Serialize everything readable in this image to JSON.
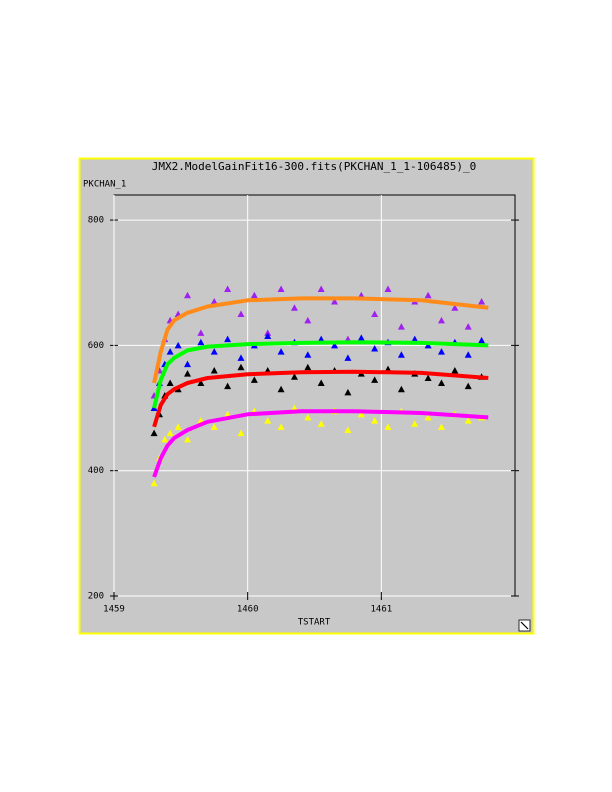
{
  "chart_data": {
    "type": "scatter",
    "title": "JMX2.ModelGainFit16-300.fits(PKCHAN_1_1-106485)_0",
    "y_label": "PKCHAN_1",
    "x_label": "TSTART",
    "xlim": [
      1459,
      1462
    ],
    "ylim": [
      200,
      840
    ],
    "xticks": [
      1459,
      1460,
      1461
    ],
    "yticks": [
      200,
      400,
      600,
      800
    ],
    "grid": true,
    "series": [
      {
        "mode": "markers",
        "color": "#a020f0",
        "x": [
          1459.3,
          1459.34,
          1459.38,
          1459.42,
          1459.48,
          1459.55,
          1459.65,
          1459.75,
          1459.85,
          1459.95,
          1460.05,
          1460.15,
          1460.25,
          1460.35,
          1460.45,
          1460.55,
          1460.65,
          1460.75,
          1460.85,
          1460.95,
          1461.05,
          1461.15,
          1461.25,
          1461.35,
          1461.45,
          1461.55,
          1461.65,
          1461.75
        ],
        "values": [
          520,
          560,
          610,
          640,
          650,
          680,
          620,
          670,
          690,
          650,
          680,
          620,
          690,
          660,
          640,
          690,
          670,
          610,
          680,
          650,
          690,
          630,
          670,
          680,
          640,
          660,
          630,
          670
        ]
      },
      {
        "mode": "markers",
        "color": "#0000ff",
        "x": [
          1459.3,
          1459.34,
          1459.38,
          1459.42,
          1459.48,
          1459.55,
          1459.65,
          1459.75,
          1459.85,
          1459.95,
          1460.05,
          1460.15,
          1460.25,
          1460.35,
          1460.45,
          1460.55,
          1460.65,
          1460.75,
          1460.85,
          1460.95,
          1461.05,
          1461.15,
          1461.25,
          1461.35,
          1461.45,
          1461.55,
          1461.65,
          1461.75
        ],
        "values": [
          500,
          540,
          570,
          590,
          600,
          570,
          605,
          590,
          610,
          580,
          600,
          615,
          590,
          605,
          585,
          610,
          600,
          580,
          612,
          595,
          605,
          585,
          610,
          600,
          590,
          605,
          585,
          608
        ]
      },
      {
        "mode": "markers",
        "color": "#000000",
        "x": [
          1459.3,
          1459.34,
          1459.38,
          1459.42,
          1459.48,
          1459.55,
          1459.65,
          1459.75,
          1459.85,
          1459.95,
          1460.05,
          1460.15,
          1460.25,
          1460.35,
          1460.45,
          1460.55,
          1460.65,
          1460.75,
          1460.85,
          1460.95,
          1461.05,
          1461.15,
          1461.25,
          1461.35,
          1461.45,
          1461.55,
          1461.65,
          1461.75
        ],
        "values": [
          460,
          490,
          520,
          540,
          530,
          555,
          540,
          560,
          535,
          565,
          545,
          560,
          530,
          550,
          565,
          540,
          560,
          525,
          555,
          545,
          562,
          530,
          555,
          548,
          540,
          560,
          535,
          550
        ]
      },
      {
        "mode": "markers",
        "color": "#ffff00",
        "x": [
          1459.3,
          1459.34,
          1459.38,
          1459.42,
          1459.48,
          1459.55,
          1459.65,
          1459.75,
          1459.85,
          1459.95,
          1460.05,
          1460.15,
          1460.25,
          1460.35,
          1460.45,
          1460.55,
          1460.65,
          1460.75,
          1460.85,
          1460.95,
          1461.05,
          1461.15,
          1461.25,
          1461.35,
          1461.45,
          1461.55,
          1461.65,
          1461.75
        ],
        "values": [
          380,
          420,
          450,
          460,
          470,
          450,
          480,
          470,
          490,
          460,
          495,
          480,
          470,
          500,
          485,
          475,
          495,
          465,
          490,
          480,
          470,
          495,
          475,
          485,
          470,
          490,
          480,
          485
        ]
      },
      {
        "mode": "line",
        "color": "#ff8c1a",
        "x": [
          1459.3,
          1459.35,
          1459.4,
          1459.45,
          1459.55,
          1459.7,
          1460.0,
          1460.4,
          1460.8,
          1461.3,
          1461.8
        ],
        "values": [
          540,
          590,
          625,
          640,
          652,
          662,
          672,
          675,
          675,
          672,
          660
        ]
      },
      {
        "mode": "line",
        "color": "#00ff00",
        "x": [
          1459.3,
          1459.35,
          1459.4,
          1459.45,
          1459.55,
          1459.7,
          1460.0,
          1460.4,
          1460.8,
          1461.3,
          1461.8
        ],
        "values": [
          500,
          545,
          570,
          580,
          592,
          598,
          602,
          604,
          605,
          604,
          600
        ]
      },
      {
        "mode": "line",
        "color": "#ff0000",
        "x": [
          1459.3,
          1459.35,
          1459.4,
          1459.45,
          1459.55,
          1459.7,
          1460.0,
          1460.4,
          1460.8,
          1461.3,
          1461.8
        ],
        "values": [
          470,
          505,
          522,
          530,
          540,
          548,
          554,
          557,
          558,
          556,
          548
        ]
      },
      {
        "mode": "line",
        "color": "#ff00ff",
        "x": [
          1459.3,
          1459.35,
          1459.4,
          1459.45,
          1459.55,
          1459.7,
          1460.0,
          1460.4,
          1460.8,
          1461.3,
          1461.8
        ],
        "values": [
          390,
          420,
          440,
          452,
          465,
          478,
          490,
          495,
          495,
          492,
          485
        ]
      }
    ]
  }
}
